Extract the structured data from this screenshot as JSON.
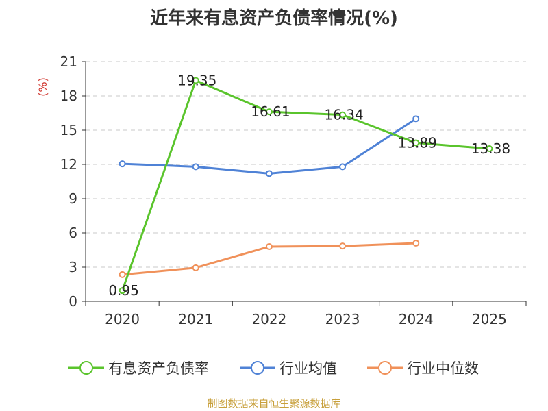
{
  "chart_data": {
    "type": "line",
    "title": "近年来有息资产负债率情况(%)",
    "ylabel": "(%)",
    "xlabel": "",
    "categories": [
      "2020",
      "2021",
      "2022",
      "2023",
      "2024",
      "2025"
    ],
    "yticks": [
      0,
      3,
      6,
      9,
      12,
      15,
      18,
      21
    ],
    "ylim": [
      0,
      21
    ],
    "grid": true,
    "legend_position": "bottom",
    "series": [
      {
        "name": "有息资产负债率",
        "color": "#5ac42c",
        "values": [
          0.95,
          19.35,
          16.61,
          16.34,
          13.89,
          13.38
        ],
        "labels": [
          "0.95",
          "19.35",
          "16.61",
          "16.34",
          "13.89",
          "13.38"
        ]
      },
      {
        "name": "行业均值",
        "color": "#4f82d6",
        "values": [
          12.05,
          11.8,
          11.2,
          11.8,
          16.0,
          null
        ]
      },
      {
        "name": "行业中位数",
        "color": "#f0915a",
        "values": [
          2.35,
          2.95,
          4.8,
          4.85,
          5.1,
          null
        ]
      }
    ]
  },
  "source": "制图数据来自恒生聚源数据库"
}
